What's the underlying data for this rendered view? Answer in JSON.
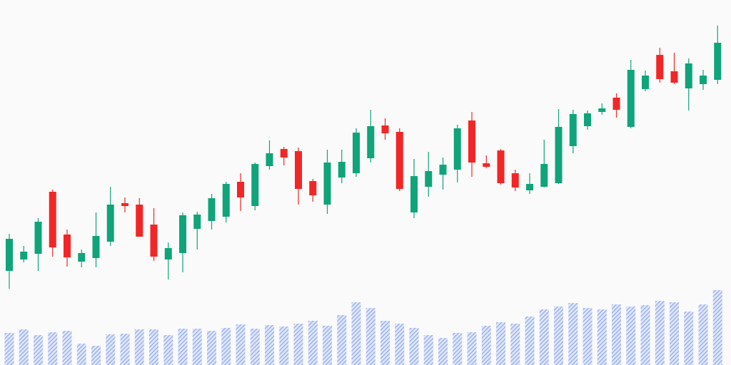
{
  "chart_data": {
    "type": "candlestick",
    "open": [
      132,
      148,
      156,
      243,
      183,
      145,
      150,
      173,
      227,
      225,
      197,
      148,
      157,
      191,
      202,
      208,
      257,
      223,
      279,
      303,
      300,
      258,
      225,
      263,
      269,
      290,
      336,
      327,
      214,
      250,
      267,
      274,
      343,
      283,
      301,
      269,
      245,
      250,
      255,
      307,
      335,
      355,
      375,
      334,
      387,
      435,
      412,
      388,
      394,
      400
    ],
    "high": [
      184,
      167,
      206,
      246,
      190,
      162,
      214,
      250,
      235,
      234,
      220,
      172,
      214,
      215,
      240,
      257,
      269,
      284,
      315,
      306,
      305,
      261,
      302,
      302,
      332,
      358,
      346,
      332,
      289,
      299,
      291,
      337,
      355,
      294,
      303,
      274,
      269,
      316,
      359,
      358,
      357,
      367,
      381,
      428,
      413,
      445,
      438,
      430,
      414,
      476
    ],
    "low": [
      107,
      144,
      132,
      152,
      138,
      137,
      137,
      167,
      214,
      180,
      146,
      120,
      130,
      162,
      190,
      200,
      216,
      217,
      274,
      280,
      225,
      229,
      212,
      255,
      264,
      284,
      316,
      244,
      206,
      236,
      246,
      256,
      264,
      276,
      253,
      244,
      240,
      249,
      254,
      297,
      330,
      351,
      347,
      332,
      384,
      396,
      394,
      357,
      386,
      394
    ],
    "close": [
      177,
      159,
      201,
      165,
      151,
      157,
      181,
      225,
      223,
      180,
      152,
      164,
      210,
      211,
      234,
      254,
      235,
      282,
      297,
      291,
      247,
      238,
      284,
      285,
      326,
      335,
      325,
      247,
      265,
      272,
      281,
      332,
      284,
      278,
      255,
      249,
      254,
      282,
      334,
      352,
      353,
      360,
      358,
      414,
      406,
      401,
      396,
      423,
      406,
      452
    ],
    "volume": [
      45,
      50,
      42,
      46,
      48,
      30,
      27,
      43,
      44,
      50,
      50,
      42,
      51,
      51,
      48,
      52,
      57,
      51,
      56,
      54,
      58,
      62,
      55,
      70,
      88,
      80,
      62,
      58,
      52,
      42,
      38,
      45,
      46,
      55,
      60,
      58,
      68,
      78,
      82,
      87,
      80,
      78,
      85,
      82,
      84,
      90,
      88,
      75,
      85,
      105
    ],
    "ylim": [
      0,
      512
    ],
    "volume_ylim": [
      0,
      110
    ],
    "up_color": "#0fa47a",
    "down_color": "#f22626",
    "volume_color": "#8fa8ec"
  }
}
